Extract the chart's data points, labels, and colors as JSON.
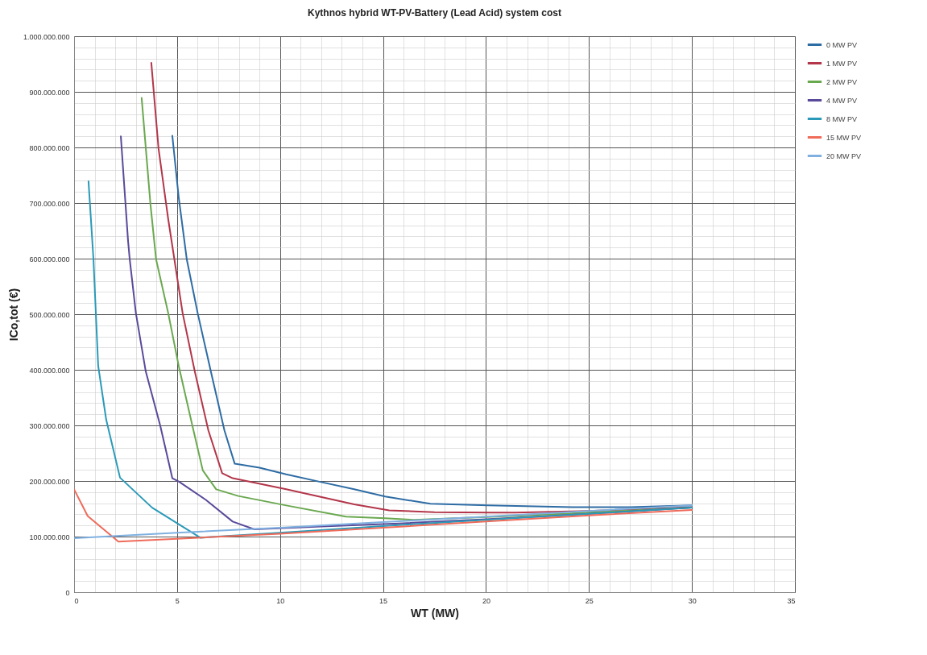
{
  "chart_data": {
    "type": "line",
    "title": "Kythnos hybrid WT-PV-Battery (Lead Acid) system cost",
    "xlabel": "WT (MW)",
    "ylabel": "ICo,tot (€)",
    "xlim": [
      0,
      35
    ],
    "xticks": [
      0,
      5,
      10,
      15,
      20,
      25,
      30,
      35
    ],
    "ylim": [
      0,
      1000000000
    ],
    "yticks": [
      0,
      {
        "value": 100000000,
        "label": "100.000.000"
      },
      {
        "value": 200000000,
        "label": "200.000.000"
      },
      {
        "value": 300000000,
        "label": "300.000.000"
      },
      {
        "value": 400000000,
        "label": "400.000.000"
      },
      {
        "value": 500000000,
        "label": "500.000.000"
      },
      {
        "value": 600000000,
        "label": "600.000.000"
      },
      {
        "value": 700000000,
        "label": "700.000.000"
      },
      {
        "value": 800000000,
        "label": "800.000.000"
      },
      {
        "value": 900000000,
        "label": "900.000.000"
      },
      {
        "value": 1000000000,
        "label": "1.000.000.000"
      }
    ],
    "grid": true,
    "legend": "right",
    "marker": "none",
    "line_style": "solid",
    "series": [
      {
        "name": "0 MW PV",
        "color": "#2e6ca4",
        "x": [
          4.77,
          5.08,
          5.47,
          6.0,
          6.64,
          7.3,
          7.8,
          9.0,
          10.3,
          12.0,
          13.6,
          15.1,
          17.3,
          20.1,
          24.2,
          27.0,
          30.0
        ],
        "values": [
          821000000,
          710000000,
          599000000,
          502000000,
          397000000,
          291000000,
          231000000,
          224000000,
          212000000,
          198000000,
          185000000,
          172000000,
          159000000,
          156000000,
          153000000,
          153000000,
          156000000
        ]
      },
      {
        "name": "1 MW PV",
        "color": "#b3364a",
        "x": [
          3.75,
          4.1,
          4.57,
          5.27,
          5.86,
          6.52,
          7.19,
          7.7,
          10.3,
          13.6,
          15.3,
          17.5,
          20.3,
          21.4,
          25.0,
          30.0
        ],
        "values": [
          952000000,
          798000000,
          671000000,
          502000000,
          397000000,
          291000000,
          214000000,
          205000000,
          185000000,
          158000000,
          147000000,
          144000000,
          143000000,
          143000000,
          146000000,
          153000000
        ]
      },
      {
        "name": "2 MW PV",
        "color": "#6aa84f",
        "x": [
          3.28,
          3.71,
          3.98,
          4.57,
          5.08,
          5.74,
          6.25,
          6.9,
          7.97,
          10.3,
          13.2,
          15.1,
          16.5,
          20.0,
          25.0,
          30.0
        ],
        "values": [
          889000000,
          697000000,
          599000000,
          502000000,
          407000000,
          300000000,
          219000000,
          185000000,
          173000000,
          156000000,
          136000000,
          133000000,
          130000000,
          135000000,
          143000000,
          152000000
        ]
      },
      {
        "name": "4 MW PV",
        "color": "#5a4a9a",
        "x": [
          2.27,
          2.62,
          2.7,
          3.0,
          3.48,
          4.18,
          4.77,
          5.08,
          6.4,
          7.7,
          8.75,
          12.0,
          16.0,
          20.0,
          25.0,
          30.0
        ],
        "values": [
          820000000,
          632000000,
          599000000,
          502000000,
          397000000,
          300000000,
          205000000,
          199000000,
          166000000,
          127000000,
          113000000,
          118000000,
          124000000,
          131000000,
          141000000,
          152000000
        ]
      },
      {
        "name": "8 MW PV",
        "color": "#2a9ab8",
        "x": [
          0.7,
          0.94,
          1.17,
          1.56,
          2.23,
          3.79,
          6.13,
          10.0,
          15.0,
          20.0,
          25.0,
          30.0
        ],
        "values": [
          739000000,
          599000000,
          407000000,
          310000000,
          206000000,
          152000000,
          98000000,
          107000000,
          119000000,
          130000000,
          141000000,
          152000000
        ]
      },
      {
        "name": "15 MW PV",
        "color": "#ef6b5a",
        "x": [
          0.0,
          0.66,
          2.15,
          5.0,
          10.0,
          15.0,
          20.0,
          25.0,
          30.0
        ],
        "values": [
          185000000,
          137000000,
          91000000,
          96000000,
          105000000,
          116000000,
          127000000,
          138000000,
          148000000
        ]
      },
      {
        "name": "20 MW PV",
        "color": "#7fb0e0",
        "x": [
          0.0,
          5.0,
          10.0,
          15.0,
          20.0,
          25.0,
          30.0
        ],
        "values": [
          97000000,
          107000000,
          116000000,
          126000000,
          136000000,
          146000000,
          156000000
        ]
      }
    ]
  }
}
